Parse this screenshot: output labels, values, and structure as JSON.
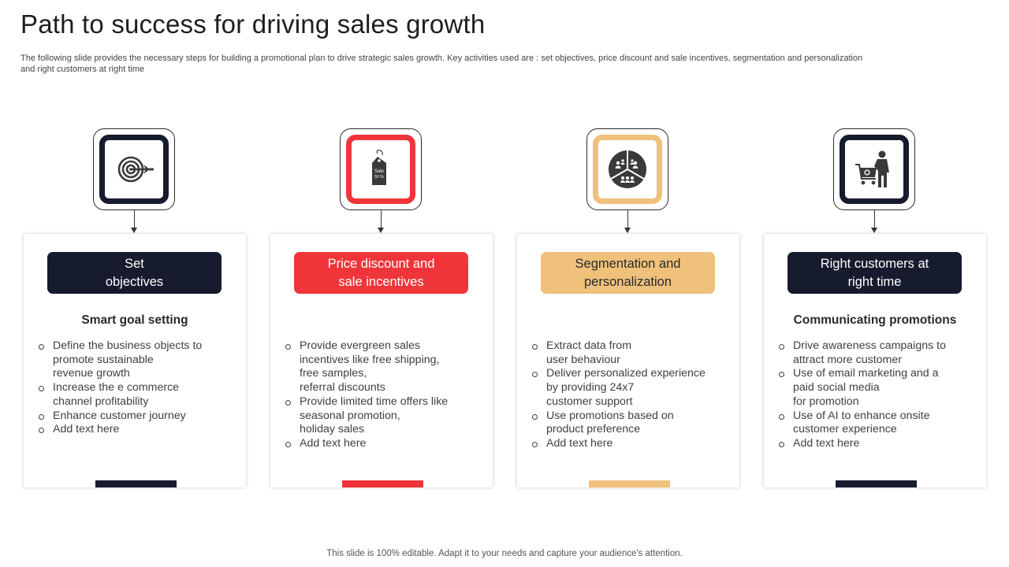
{
  "header": {
    "title": "Path to success for driving sales growth",
    "subtitle": "The following slide provides the necessary steps for building a promotional plan to drive strategic sales growth. Key activities used are :  set objectives, price discount and sale incentives, segmentation and personalization and right customers at right time"
  },
  "colors": {
    "navy": "#161b2e",
    "red": "#f0353a",
    "tan": "#efc17b"
  },
  "columns": [
    {
      "icon": "target-dart-icon",
      "accent": "#161b2e",
      "pill_label": "Set\nobjectives",
      "subheading": "Smart goal setting",
      "bullets": [
        "Define the business objects to\npromote sustainable\nrevenue growth",
        "Increase the e commerce\nchannel profitability",
        "Enhance customer journey",
        "Add text here"
      ]
    },
    {
      "icon": "sale-tag-icon",
      "accent": "#f0353a",
      "pill_label": "Price discount and\nsale incentives",
      "subheading": "",
      "bullets": [
        "Provide evergreen sales\nincentives like free shipping,\nfree samples,\nreferral discounts",
        "Provide limited time offers like\nseasonal promotion,\nholiday  sales",
        "Add text here"
      ],
      "tag_text_1": "Sale",
      "tag_text_2": "50 %"
    },
    {
      "icon": "audience-segments-pie-icon",
      "accent": "#efc17b",
      "pill_label": "Segmentation and\npersonalization",
      "subheading": "",
      "bullets": [
        "Extract data from\nuser behaviour",
        "Deliver personalized experience\nby providing 24x7\ncustomer support",
        "Use promotions based on\nproduct preference",
        "Add text here"
      ]
    },
    {
      "icon": "shopper-cart-icon",
      "accent": "#161b2e",
      "pill_label": "Right customers at\nright time",
      "subheading": "Communicating promotions",
      "bullets": [
        "Drive awareness campaigns to\nattract more customer",
        "Use of email marketing and a\npaid social media\nfor promotion",
        "Use of AI to enhance onsite\ncustomer experience",
        "Add text here"
      ]
    }
  ],
  "footer": {
    "text": "This slide is 100% editable. Adapt it to your needs and capture your audience's attention."
  }
}
